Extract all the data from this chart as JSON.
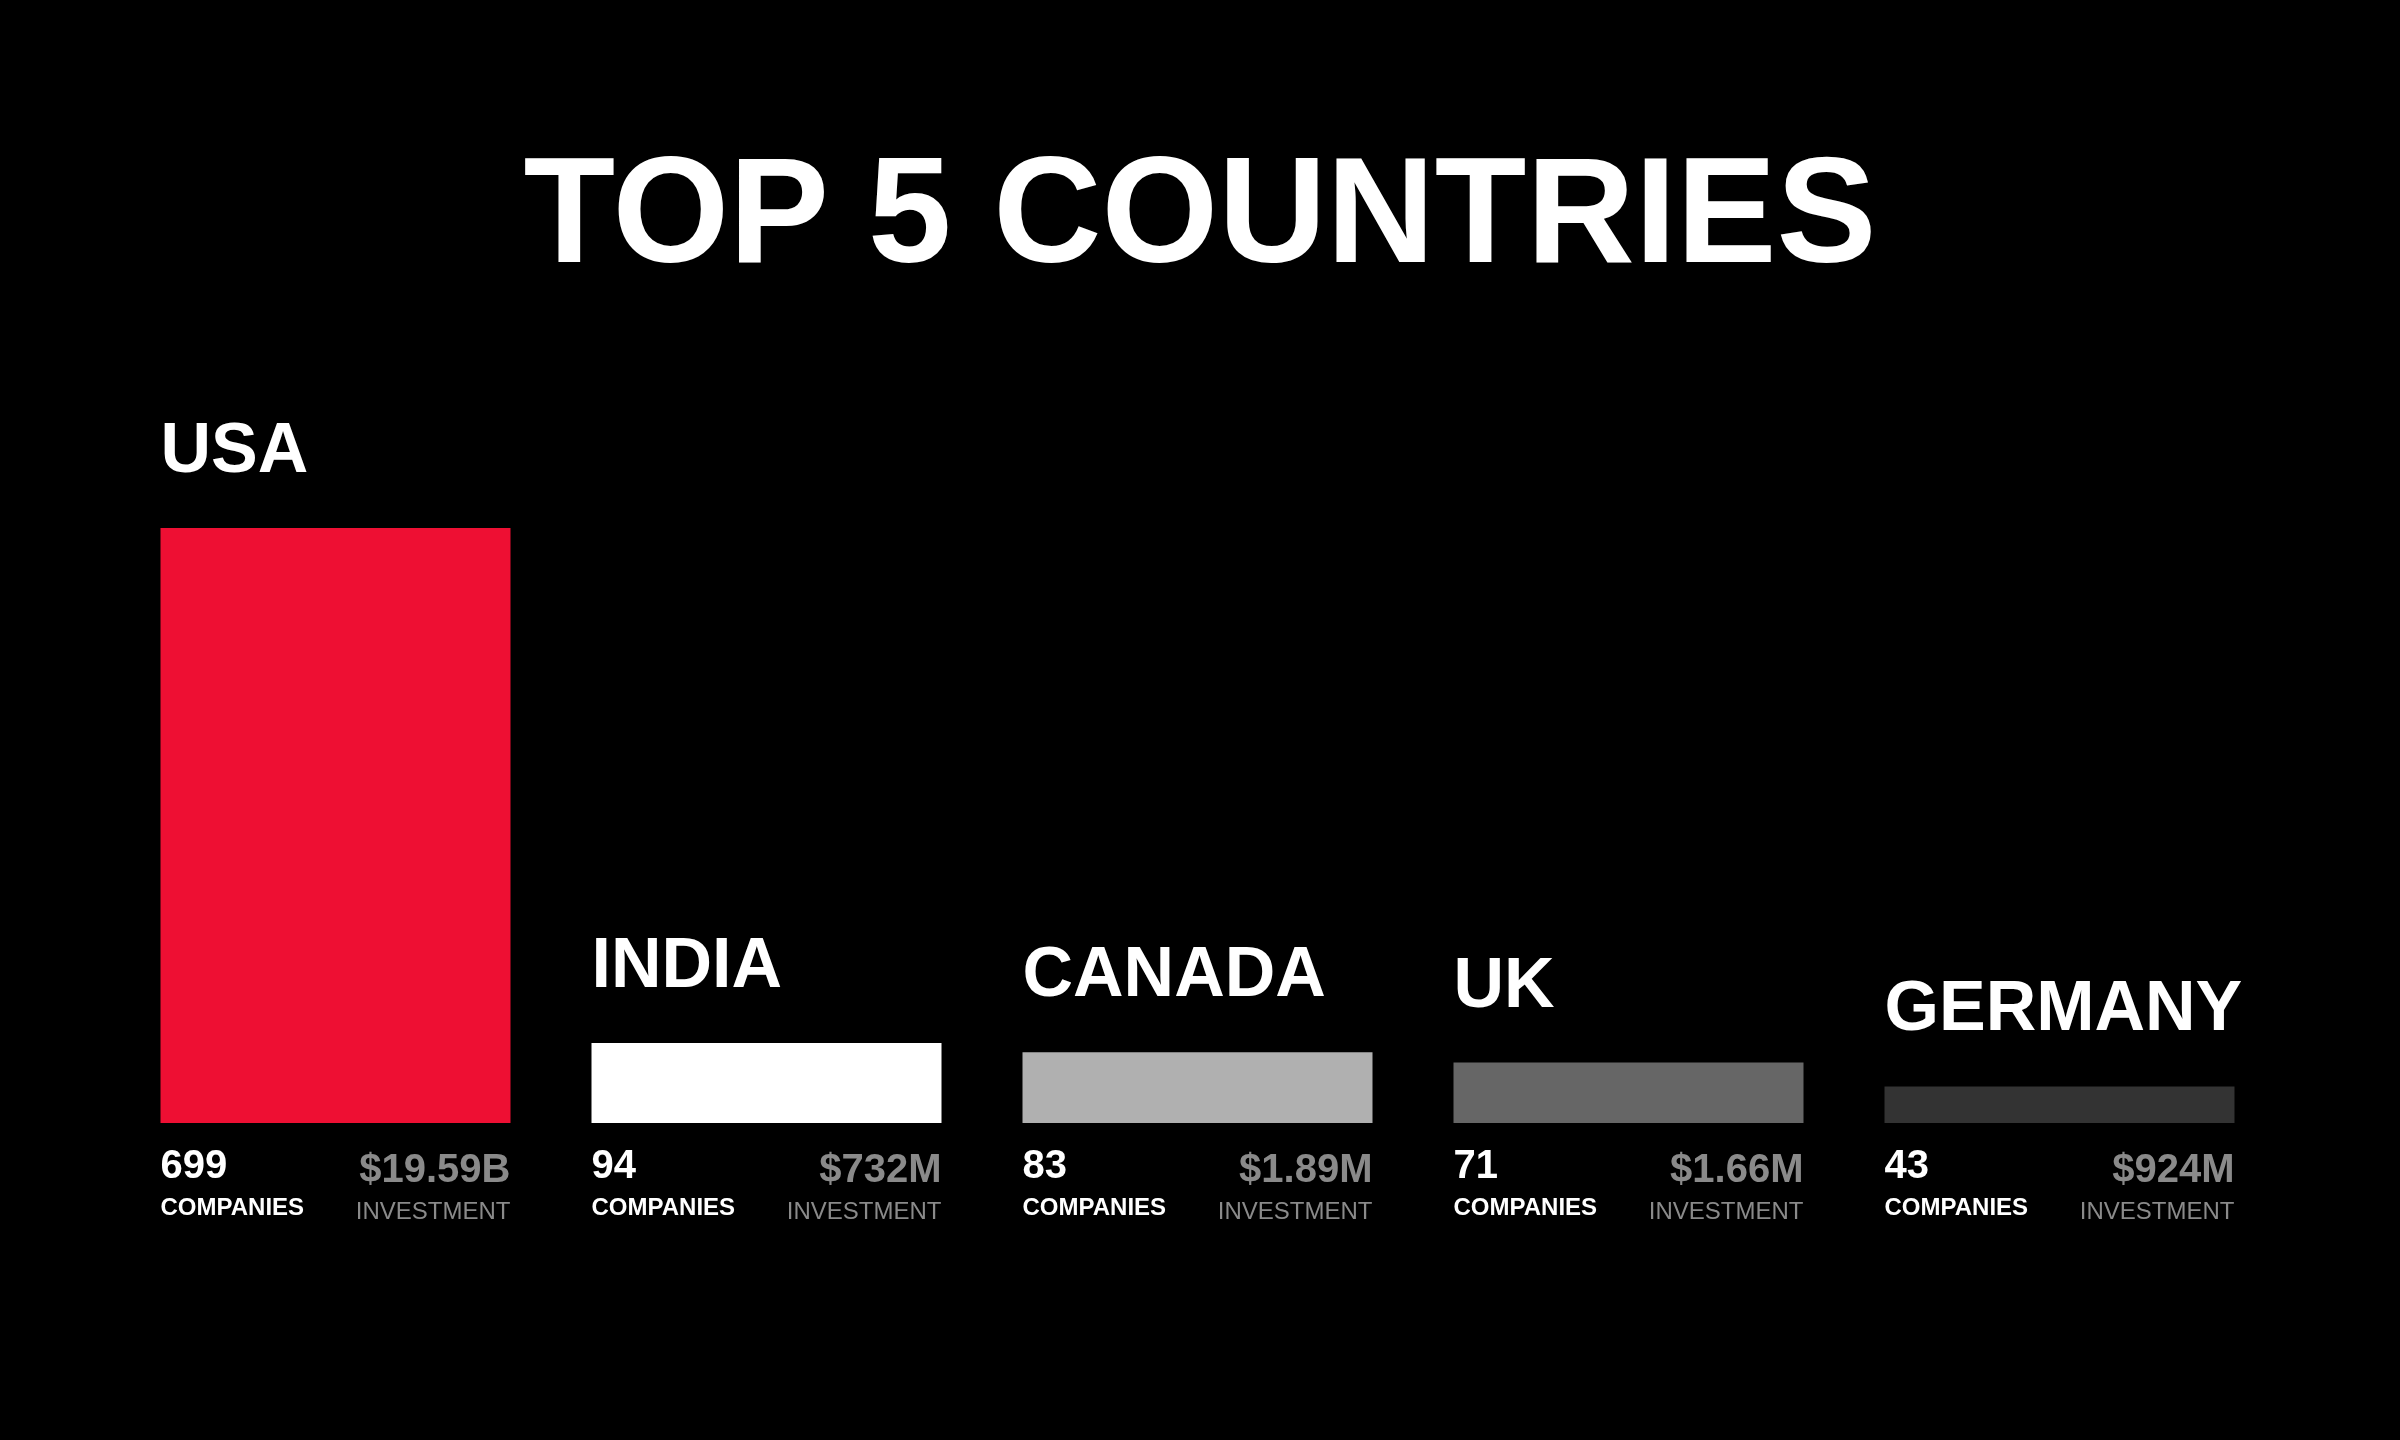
{
  "chart_data": {
    "type": "bar",
    "title": "TOP 5 COUNTRIES",
    "categories": [
      "USA",
      "INDIA",
      "CANADA",
      "UK",
      "GERMANY"
    ],
    "values": [
      699,
      94,
      83,
      71,
      43
    ],
    "colors": [
      "#ee0f33",
      "#ffffff",
      "#b0b0b0",
      "#666666",
      "#333333"
    ],
    "value_labels": [
      "699\nCOMPANIES",
      "94\nCOMPANIES",
      "83\nCOMPANIES",
      "71\nCOMPANIES",
      "43\nCOMPANIES"
    ],
    "annotations": [
      "$19.59B\nINVESTMENT",
      "$732M\nINVESTMENT",
      "$1.89M\nINVESTMENT",
      "$1.66M\nINVESTMENT",
      "$924M\nINVESTMENT"
    ]
  }
}
